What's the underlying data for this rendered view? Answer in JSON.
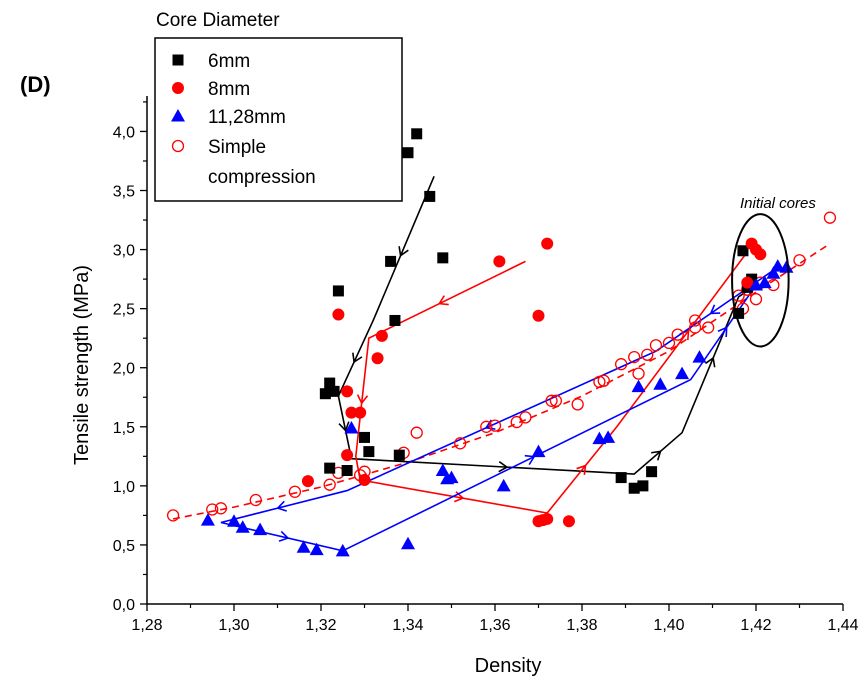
{
  "panel_label": "(D)",
  "chart_data": {
    "type": "scatter",
    "title": "",
    "xlabel": "Density",
    "ylabel": "Tensile strength (MPa)",
    "xlim": [
      1.28,
      1.44
    ],
    "ylim": [
      0.0,
      4.3
    ],
    "x_ticks": [
      1.28,
      1.3,
      1.32,
      1.34,
      1.36,
      1.38,
      1.4,
      1.42,
      1.44
    ],
    "x_tick_labels": [
      "1,28",
      "1,30",
      "1,32",
      "1,34",
      "1,36",
      "1,38",
      "1,40",
      "1,42",
      "1,44"
    ],
    "y_ticks": [
      0.0,
      0.5,
      1.0,
      1.5,
      2.0,
      2.5,
      3.0,
      3.5,
      4.0
    ],
    "y_tick_labels": [
      "0,0",
      "0,5",
      "1,0",
      "1,5",
      "2,0",
      "2,5",
      "3,0",
      "3,5",
      "4,0"
    ],
    "legend_title": "Core Diameter",
    "legend_position": "top-left",
    "grid": false,
    "annotation": "Initial cores",
    "series": [
      {
        "name": "6mm",
        "marker": "square",
        "color": "#000000",
        "points": [
          [
            1.342,
            3.98
          ],
          [
            1.34,
            3.82
          ],
          [
            1.345,
            3.45
          ],
          [
            1.348,
            2.93
          ],
          [
            1.336,
            2.9
          ],
          [
            1.324,
            2.65
          ],
          [
            1.337,
            2.4
          ],
          [
            1.322,
            1.87
          ],
          [
            1.321,
            1.78
          ],
          [
            1.323,
            1.8
          ],
          [
            1.33,
            1.41
          ],
          [
            1.331,
            1.29
          ],
          [
            1.338,
            1.26
          ],
          [
            1.322,
            1.15
          ],
          [
            1.326,
            1.13
          ],
          [
            1.389,
            1.07
          ],
          [
            1.396,
            1.12
          ],
          [
            1.392,
            0.98
          ],
          [
            1.394,
            1.0
          ],
          [
            1.417,
            2.99
          ],
          [
            1.419,
            2.75
          ],
          [
            1.418,
            2.68
          ],
          [
            1.416,
            2.46
          ]
        ]
      },
      {
        "name": "8mm",
        "marker": "circle",
        "color": "#ff0000",
        "points": [
          [
            1.372,
            3.05
          ],
          [
            1.361,
            2.9
          ],
          [
            1.324,
            2.45
          ],
          [
            1.37,
            2.44
          ],
          [
            1.334,
            2.27
          ],
          [
            1.333,
            2.08
          ],
          [
            1.326,
            1.8
          ],
          [
            1.327,
            1.62
          ],
          [
            1.329,
            1.62
          ],
          [
            1.326,
            1.26
          ],
          [
            1.317,
            1.04
          ],
          [
            1.33,
            1.05
          ],
          [
            1.37,
            0.7
          ],
          [
            1.371,
            0.71
          ],
          [
            1.372,
            0.72
          ],
          [
            1.377,
            0.7
          ],
          [
            1.419,
            3.05
          ],
          [
            1.42,
            3.0
          ],
          [
            1.421,
            2.96
          ],
          [
            1.418,
            2.72
          ]
        ]
      },
      {
        "name": "11,28mm",
        "marker": "triangle",
        "color": "#0000ff",
        "points": [
          [
            1.294,
            0.71
          ],
          [
            1.3,
            0.7
          ],
          [
            1.302,
            0.65
          ],
          [
            1.306,
            0.63
          ],
          [
            1.316,
            0.48
          ],
          [
            1.319,
            0.46
          ],
          [
            1.325,
            0.45
          ],
          [
            1.34,
            0.51
          ],
          [
            1.327,
            1.49
          ],
          [
            1.348,
            1.13
          ],
          [
            1.35,
            1.07
          ],
          [
            1.349,
            1.06
          ],
          [
            1.362,
            1.0
          ],
          [
            1.37,
            1.29
          ],
          [
            1.384,
            1.4
          ],
          [
            1.386,
            1.41
          ],
          [
            1.393,
            1.84
          ],
          [
            1.398,
            1.86
          ],
          [
            1.403,
            1.95
          ],
          [
            1.407,
            2.09
          ],
          [
            1.42,
            2.7
          ],
          [
            1.422,
            2.72
          ],
          [
            1.424,
            2.8
          ],
          [
            1.425,
            2.86
          ],
          [
            1.427,
            2.85
          ]
        ]
      },
      {
        "name": "Simple\ncompression",
        "marker": "open-circle",
        "color": "#ff0000",
        "points": [
          [
            1.286,
            0.75
          ],
          [
            1.295,
            0.8
          ],
          [
            1.297,
            0.81
          ],
          [
            1.305,
            0.88
          ],
          [
            1.314,
            0.95
          ],
          [
            1.322,
            1.01
          ],
          [
            1.324,
            1.11
          ],
          [
            1.329,
            1.09
          ],
          [
            1.33,
            1.12
          ],
          [
            1.339,
            1.28
          ],
          [
            1.342,
            1.45
          ],
          [
            1.352,
            1.36
          ],
          [
            1.358,
            1.5
          ],
          [
            1.36,
            1.51
          ],
          [
            1.365,
            1.54
          ],
          [
            1.367,
            1.58
          ],
          [
            1.373,
            1.72
          ],
          [
            1.374,
            1.72
          ],
          [
            1.379,
            1.69
          ],
          [
            1.384,
            1.88
          ],
          [
            1.385,
            1.89
          ],
          [
            1.389,
            2.03
          ],
          [
            1.392,
            2.09
          ],
          [
            1.393,
            1.95
          ],
          [
            1.395,
            2.11
          ],
          [
            1.397,
            2.19
          ],
          [
            1.4,
            2.21
          ],
          [
            1.402,
            2.28
          ],
          [
            1.406,
            2.34
          ],
          [
            1.406,
            2.4
          ],
          [
            1.409,
            2.34
          ],
          [
            1.416,
            2.61
          ],
          [
            1.417,
            2.5
          ],
          [
            1.418,
            2.66
          ],
          [
            1.42,
            2.58
          ],
          [
            1.421,
            2.72
          ],
          [
            1.424,
            2.7
          ],
          [
            1.43,
            2.91
          ],
          [
            1.437,
            3.27
          ]
        ]
      }
    ],
    "path_lines": [
      {
        "color": "#000000",
        "points": [
          [
            1.346,
            3.62
          ],
          [
            1.332,
            2.4
          ],
          [
            1.324,
            1.76
          ],
          [
            1.327,
            1.23
          ],
          [
            1.392,
            1.1
          ],
          [
            1.403,
            1.45
          ],
          [
            1.416,
            2.6
          ],
          [
            1.418,
            2.65
          ]
        ]
      },
      {
        "color": "#ff0000",
        "points": [
          [
            1.367,
            2.9
          ],
          [
            1.331,
            2.25
          ],
          [
            1.328,
            1.25
          ],
          [
            1.329,
            1.05
          ],
          [
            1.372,
            0.77
          ],
          [
            1.388,
            1.5
          ],
          [
            1.418,
            2.98
          ]
        ]
      },
      {
        "color": "#0000ff",
        "points": [
          [
            1.425,
            2.85
          ],
          [
            1.397,
            2.14
          ],
          [
            1.326,
            0.96
          ],
          [
            1.297,
            0.69
          ],
          [
            1.325,
            0.45
          ],
          [
            1.405,
            1.9
          ],
          [
            1.42,
            2.7
          ]
        ]
      }
    ],
    "fit_line": {
      "color": "#ff0000",
      "dash": true,
      "points": [
        [
          1.286,
          0.72
        ],
        [
          1.3,
          0.82
        ],
        [
          1.32,
          0.99
        ],
        [
          1.34,
          1.2
        ],
        [
          1.36,
          1.45
        ],
        [
          1.38,
          1.76
        ],
        [
          1.4,
          2.14
        ],
        [
          1.42,
          2.64
        ],
        [
          1.437,
          3.05
        ]
      ]
    },
    "highlight_ellipse": {
      "cx": 1.421,
      "cy": 2.74,
      "rx": 0.0065,
      "ry": 0.56
    }
  }
}
